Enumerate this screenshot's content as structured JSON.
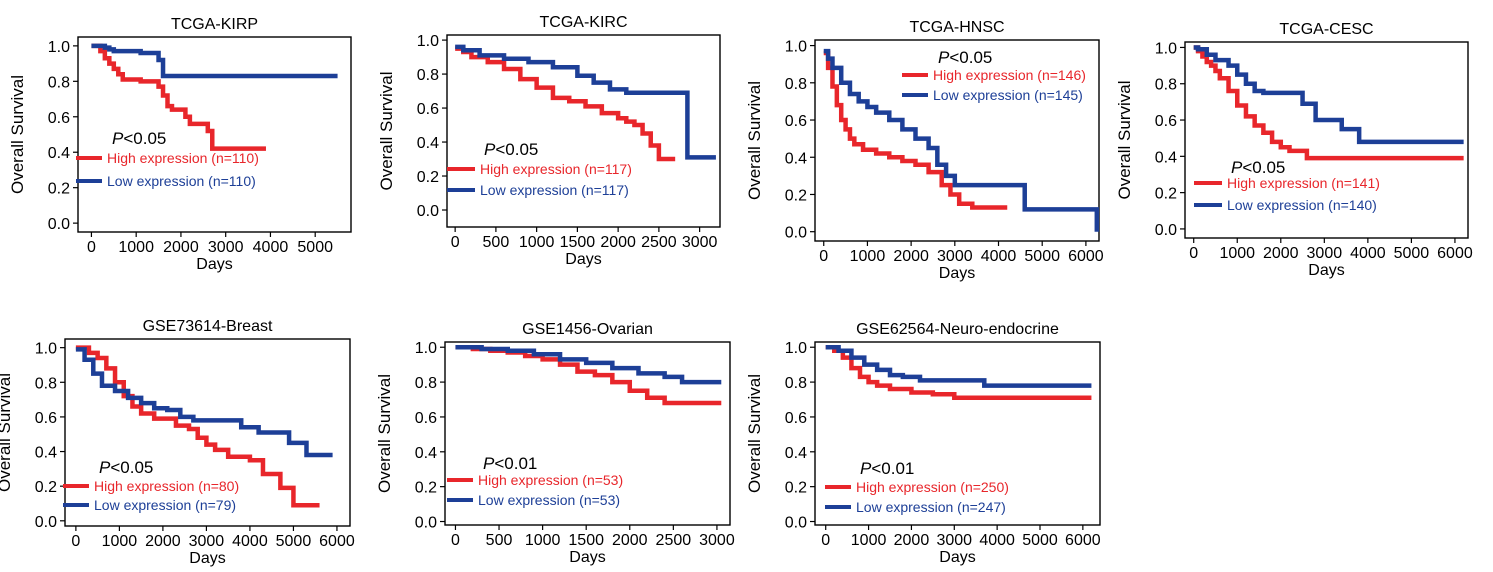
{
  "chart_data": [
    {
      "type": "line",
      "title": "TCGA-KIRP",
      "xlabel": "Days",
      "ylabel": "Overall Survival",
      "xlim": [
        -300,
        5800
      ],
      "ylim": [
        -0.05,
        1.05
      ],
      "xticks": [
        0,
        1000,
        2000,
        3000,
        4000,
        5000
      ],
      "yticks": [
        "0.0",
        "0.2",
        "0.4",
        "0.6",
        "0.8",
        "1.0"
      ],
      "pvalue_italic": "P",
      "pvalue_rest": "<0.05",
      "legend_pos": "bottom-left",
      "series": [
        {
          "name": "High expression (n=110)",
          "color": "#e8262b",
          "x": [
            0,
            200,
            300,
            400,
            500,
            600,
            700,
            1000,
            1100,
            1500,
            1600,
            1700,
            1800,
            2000,
            2100,
            2200,
            2400,
            2600,
            2700,
            3000,
            3900
          ],
          "y": [
            1.0,
            0.97,
            0.93,
            0.9,
            0.87,
            0.84,
            0.81,
            0.81,
            0.8,
            0.77,
            0.72,
            0.66,
            0.64,
            0.64,
            0.6,
            0.56,
            0.56,
            0.52,
            0.42,
            0.42,
            0.42
          ]
        },
        {
          "name": "Low expression (n=110)",
          "color": "#1d3f97",
          "x": [
            0,
            200,
            300,
            400,
            500,
            1000,
            1100,
            1500,
            1600,
            3000,
            4000,
            5500
          ],
          "y": [
            1.0,
            1.0,
            0.99,
            0.98,
            0.97,
            0.97,
            0.96,
            0.92,
            0.83,
            0.83,
            0.83,
            0.83
          ]
        }
      ]
    },
    {
      "type": "line",
      "title": "TCGA-KIRC",
      "xlabel": "Days",
      "ylabel": "Overall Survival",
      "xlim": [
        -100,
        3250
      ],
      "ylim": [
        -0.1,
        1.03
      ],
      "xticks": [
        0,
        500,
        1000,
        1500,
        2000,
        2500,
        3000
      ],
      "yticks": [
        "0.0",
        "0.2",
        "0.4",
        "0.6",
        "0.8",
        "1.0"
      ],
      "pvalue_italic": "P",
      "pvalue_rest": "<0.05",
      "legend_pos": "bottom-left",
      "series": [
        {
          "name": "High expression (n=117)",
          "color": "#e8262b",
          "x": [
            0,
            100,
            200,
            400,
            600,
            800,
            1000,
            1200,
            1400,
            1600,
            1800,
            2000,
            2100,
            2200,
            2300,
            2400,
            2500,
            2700
          ],
          "y": [
            0.95,
            0.93,
            0.9,
            0.87,
            0.83,
            0.77,
            0.72,
            0.66,
            0.64,
            0.61,
            0.57,
            0.54,
            0.52,
            0.5,
            0.45,
            0.38,
            0.3,
            0.3
          ]
        },
        {
          "name": "Low expression (n=117)",
          "color": "#1d3f97",
          "x": [
            0,
            100,
            300,
            600,
            900,
            1200,
            1500,
            1700,
            1900,
            2100,
            2400,
            2600,
            2800,
            2850,
            3200
          ],
          "y": [
            0.96,
            0.94,
            0.91,
            0.89,
            0.87,
            0.84,
            0.79,
            0.75,
            0.71,
            0.69,
            0.69,
            0.69,
            0.69,
            0.31,
            0.31
          ]
        }
      ]
    },
    {
      "type": "line",
      "title": "TCGA-HNSC",
      "xlabel": "Days",
      "ylabel": "Overall Survival",
      "xlim": [
        -200,
        6300
      ],
      "ylim": [
        -0.05,
        1.03
      ],
      "xticks": [
        0,
        1000,
        2000,
        3000,
        4000,
        5000,
        6000
      ],
      "yticks": [
        "0.0",
        "0.2",
        "0.4",
        "0.6",
        "0.8",
        "1.0"
      ],
      "pvalue_italic": "P",
      "pvalue_rest": "<0.05",
      "legend_pos": "top-right",
      "series": [
        {
          "name": "High expression (n=146)",
          "color": "#e8262b",
          "x": [
            0,
            100,
            200,
            300,
            400,
            500,
            600,
            700,
            900,
            1200,
            1500,
            1800,
            2100,
            2400,
            2700,
            2900,
            3100,
            3400,
            4200
          ],
          "y": [
            0.96,
            0.88,
            0.78,
            0.68,
            0.6,
            0.55,
            0.5,
            0.47,
            0.44,
            0.42,
            0.4,
            0.38,
            0.36,
            0.32,
            0.25,
            0.2,
            0.15,
            0.13,
            0.13
          ]
        },
        {
          "name": "Low expression (n=145)",
          "color": "#1d3f97",
          "x": [
            0,
            100,
            200,
            400,
            600,
            800,
            1000,
            1200,
            1500,
            1800,
            2100,
            2400,
            2600,
            2800,
            3000,
            3500,
            4600,
            4700,
            6200,
            6250
          ],
          "y": [
            0.97,
            0.93,
            0.88,
            0.8,
            0.74,
            0.7,
            0.67,
            0.64,
            0.6,
            0.55,
            0.5,
            0.45,
            0.36,
            0.3,
            0.25,
            0.25,
            0.12,
            0.12,
            0.12,
            0.0
          ]
        }
      ]
    },
    {
      "type": "line",
      "title": "TCGA-CESC",
      "xlabel": "Days",
      "ylabel": "Overall Survival",
      "xlim": [
        -200,
        6300
      ],
      "ylim": [
        -0.05,
        1.03
      ],
      "xticks": [
        0,
        1000,
        2000,
        3000,
        4000,
        5000,
        6000
      ],
      "yticks": [
        "0.0",
        "0.2",
        "0.4",
        "0.6",
        "0.8",
        "1.0"
      ],
      "pvalue_italic": "P",
      "pvalue_rest": "<0.05",
      "legend_pos": "bottom-left",
      "series": [
        {
          "name": "High expression (n=141)",
          "color": "#e8262b",
          "x": [
            0,
            100,
            200,
            300,
            400,
            500,
            600,
            800,
            1000,
            1200,
            1400,
            1600,
            1800,
            2000,
            2200,
            2400,
            2600,
            2800,
            3500,
            6200
          ],
          "y": [
            1.0,
            0.98,
            0.95,
            0.92,
            0.9,
            0.87,
            0.83,
            0.76,
            0.68,
            0.62,
            0.57,
            0.53,
            0.48,
            0.45,
            0.43,
            0.43,
            0.39,
            0.39,
            0.39,
            0.39
          ]
        },
        {
          "name": "Low expression (n=140)",
          "color": "#1d3f97",
          "x": [
            0,
            100,
            300,
            500,
            800,
            1000,
            1200,
            1400,
            1600,
            2000,
            2400,
            2500,
            2700,
            2800,
            3400,
            3800,
            4500,
            6200
          ],
          "y": [
            1.0,
            0.99,
            0.96,
            0.93,
            0.9,
            0.85,
            0.8,
            0.76,
            0.75,
            0.75,
            0.75,
            0.69,
            0.69,
            0.6,
            0.55,
            0.48,
            0.48,
            0.48
          ]
        }
      ]
    },
    {
      "type": "line",
      "title": "GSE73614-Breast",
      "xlabel": "Days",
      "ylabel": "Overall Survival",
      "xlim": [
        -250,
        6300
      ],
      "ylim": [
        -0.03,
        1.05
      ],
      "xticks": [
        0,
        1000,
        2000,
        3000,
        4000,
        5000,
        6000
      ],
      "yticks": [
        "0.0",
        "0.2",
        "0.4",
        "0.6",
        "0.8",
        "1.0"
      ],
      "pvalue_italic": "P",
      "pvalue_rest": "<0.05",
      "legend_pos": "bottom-left",
      "series": [
        {
          "name": "High expression (n=80)",
          "color": "#e8262b",
          "x": [
            0,
            300,
            500,
            700,
            900,
            1100,
            1300,
            1500,
            1800,
            2300,
            2600,
            2800,
            3000,
            3200,
            3500,
            4000,
            4300,
            4700,
            5000,
            5600
          ],
          "y": [
            1.0,
            0.97,
            0.94,
            0.88,
            0.8,
            0.72,
            0.66,
            0.62,
            0.59,
            0.55,
            0.53,
            0.48,
            0.44,
            0.41,
            0.37,
            0.35,
            0.27,
            0.19,
            0.09,
            0.09
          ]
        },
        {
          "name": "Low expression (n=79)",
          "color": "#1d3f97",
          "x": [
            0,
            200,
            400,
            600,
            900,
            1200,
            1500,
            1800,
            2100,
            2400,
            2700,
            3000,
            3400,
            3800,
            4200,
            4600,
            4900,
            5300,
            5900
          ],
          "y": [
            0.99,
            0.93,
            0.85,
            0.78,
            0.75,
            0.71,
            0.68,
            0.65,
            0.64,
            0.6,
            0.58,
            0.58,
            0.58,
            0.54,
            0.51,
            0.51,
            0.45,
            0.38,
            0.38
          ]
        }
      ]
    },
    {
      "type": "line",
      "title": "GSE1456-Ovarian",
      "xlabel": "Days",
      "ylabel": "Overall Survival",
      "xlim": [
        -120,
        3150
      ],
      "ylim": [
        -0.02,
        1.03
      ],
      "xticks": [
        0,
        500,
        1000,
        1500,
        2000,
        2500,
        3000
      ],
      "yticks": [
        "0.0",
        "0.2",
        "0.4",
        "0.6",
        "0.8",
        "1.0"
      ],
      "pvalue_italic": "P",
      "pvalue_rest": "<0.01",
      "legend_pos": "bottom-left",
      "series": [
        {
          "name": "High expression (n=53)",
          "color": "#e8262b",
          "x": [
            0,
            200,
            400,
            600,
            800,
            1000,
            1200,
            1400,
            1600,
            1800,
            2000,
            2200,
            2400,
            3050
          ],
          "y": [
            1.0,
            0.99,
            0.98,
            0.97,
            0.95,
            0.93,
            0.9,
            0.86,
            0.84,
            0.8,
            0.75,
            0.71,
            0.68,
            0.68
          ]
        },
        {
          "name": "Low expression (n=53)",
          "color": "#1d3f97",
          "x": [
            0,
            300,
            600,
            900,
            1200,
            1500,
            1800,
            2100,
            2400,
            2600,
            3050
          ],
          "y": [
            1.0,
            0.99,
            0.98,
            0.96,
            0.93,
            0.91,
            0.88,
            0.85,
            0.83,
            0.8,
            0.8
          ]
        }
      ]
    },
    {
      "type": "line",
      "title": "GSE62564-Neuro-endocrine",
      "xlabel": "Days",
      "ylabel": "Overall Survival",
      "xlim": [
        -250,
        6400
      ],
      "ylim": [
        -0.02,
        1.03
      ],
      "xticks": [
        0,
        1000,
        2000,
        3000,
        4000,
        5000,
        6000
      ],
      "yticks": [
        "0.0",
        "0.2",
        "0.4",
        "0.6",
        "0.8",
        "1.0"
      ],
      "pvalue_italic": "P",
      "pvalue_rest": "<0.01",
      "legend_pos": "bottom-left",
      "series": [
        {
          "name": "High expression (n=250)",
          "color": "#e8262b",
          "x": [
            0,
            200,
            400,
            600,
            800,
            1000,
            1200,
            1500,
            2000,
            2500,
            3000,
            6200
          ],
          "y": [
            1.0,
            0.98,
            0.94,
            0.88,
            0.83,
            0.8,
            0.78,
            0.76,
            0.74,
            0.73,
            0.71,
            0.71
          ]
        },
        {
          "name": "Low expression (n=247)",
          "color": "#1d3f97",
          "x": [
            0,
            300,
            600,
            900,
            1200,
            1500,
            1800,
            2200,
            3500,
            3700,
            6200
          ],
          "y": [
            1.0,
            0.98,
            0.94,
            0.9,
            0.87,
            0.84,
            0.83,
            0.81,
            0.81,
            0.78,
            0.78
          ]
        }
      ]
    }
  ]
}
